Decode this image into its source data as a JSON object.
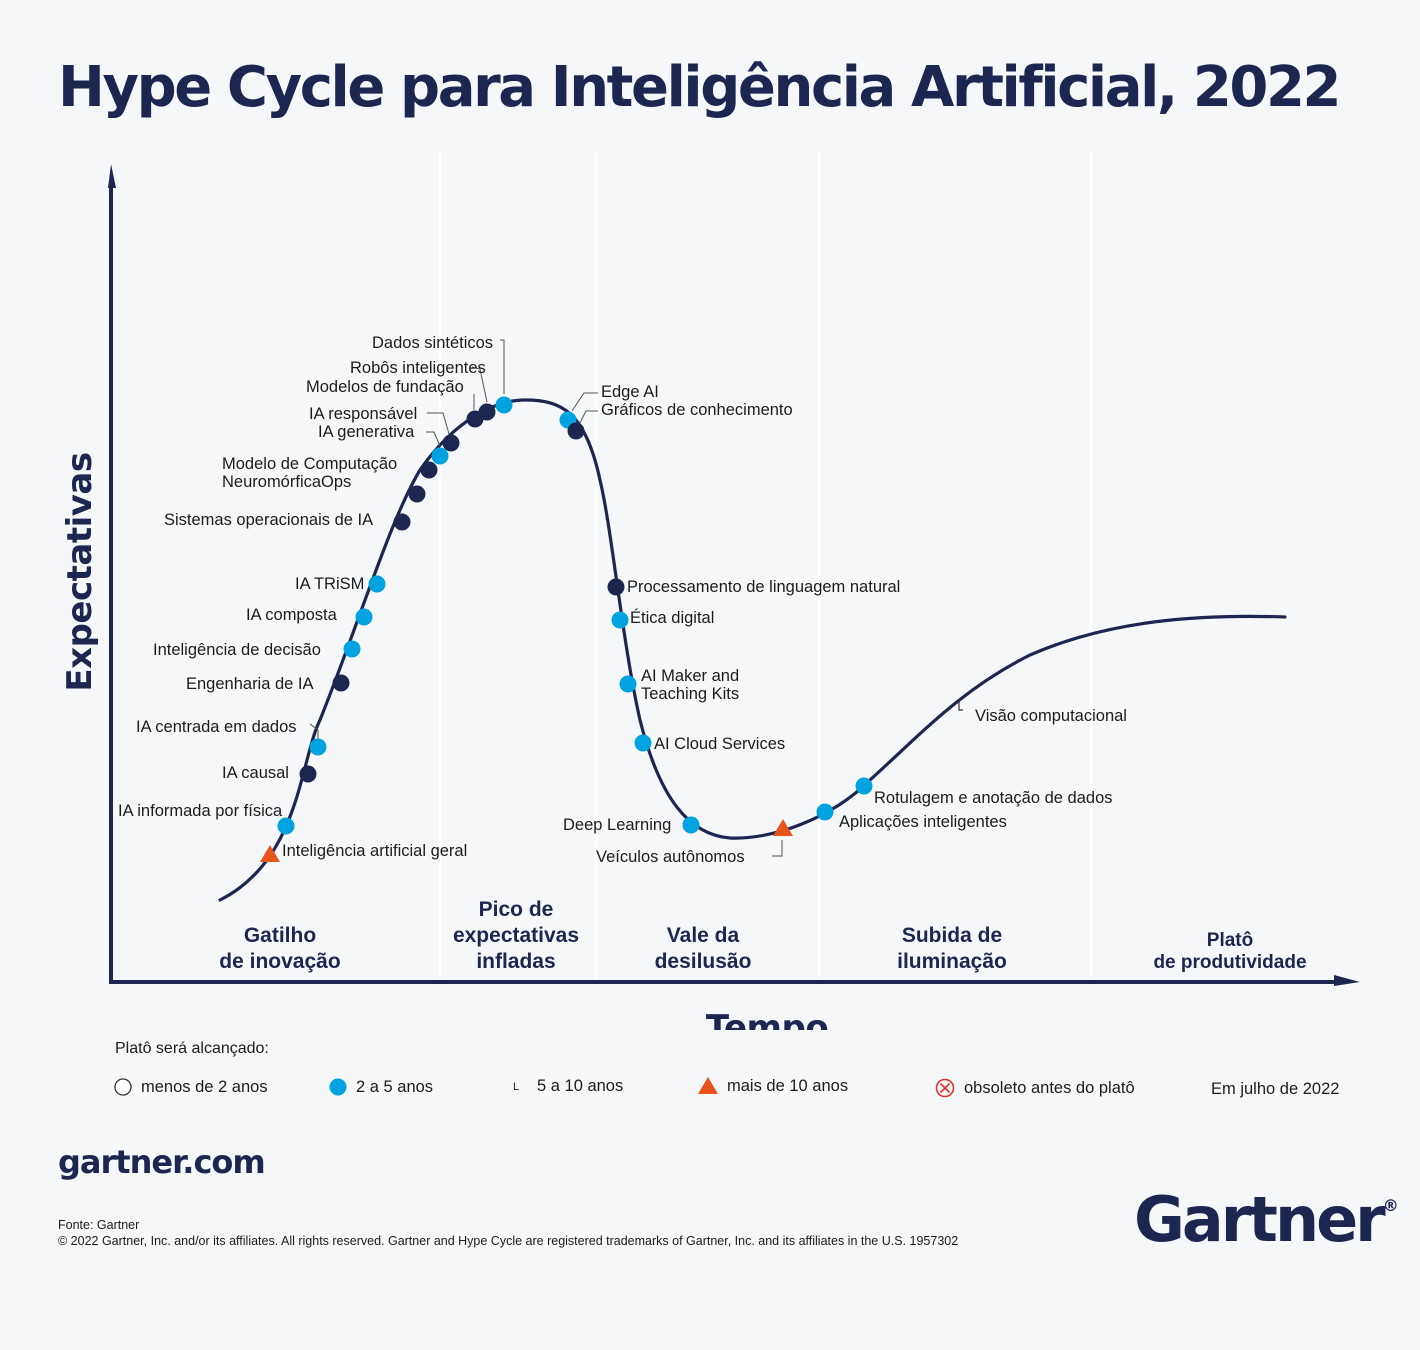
{
  "title": "Hype Cycle para Inteligência Artificial, 2022",
  "colors": {
    "navy": "#1c2651",
    "blue": "#00a3e0",
    "orange": "#e8551c",
    "red": "#e03030"
  },
  "chart_data": {
    "type": "hype-cycle",
    "xlabel": "Tempo",
    "ylabel": "Expectativas",
    "phases": [
      "Gatilho de inovação",
      "Pico de expectativas infladas",
      "Vale da desilusão",
      "Subida de iluminação",
      "Platô de produtividade"
    ],
    "categories": [
      {
        "key": "lt2",
        "name": "menos de 2 anos",
        "marker": "hollow-circle"
      },
      {
        "key": "2to5",
        "name": "2 a 5 anos",
        "marker": "blue-circle"
      },
      {
        "key": "5to10",
        "name": "5 a 10 anos",
        "marker": "navy-circle"
      },
      {
        "key": "gt10",
        "name": "mais de 10 anos",
        "marker": "orange-triangle"
      },
      {
        "key": "obs",
        "name": "obsoleto antes do platô",
        "marker": "crossed-circle"
      }
    ],
    "technologies": [
      {
        "name": "Inteligência artificial geral",
        "phase": "Gatilho de inovação",
        "category": "gt10"
      },
      {
        "name": "IA informada por física",
        "phase": "Gatilho de inovação",
        "category": "2to5"
      },
      {
        "name": "IA causal",
        "phase": "Gatilho de inovação",
        "category": "5to10"
      },
      {
        "name": "IA centrada em dados",
        "phase": "Gatilho de inovação",
        "category": "2to5"
      },
      {
        "name": "Engenharia de IA",
        "phase": "Gatilho de inovação",
        "category": "5to10"
      },
      {
        "name": "Inteligência de decisão",
        "phase": "Gatilho de inovação",
        "category": "2to5"
      },
      {
        "name": "IA composta",
        "phase": "Gatilho de inovação",
        "category": "2to5"
      },
      {
        "name": "IA TRiSM",
        "phase": "Gatilho de inovação",
        "category": "2to5"
      },
      {
        "name": "Sistemas operacionais de IA",
        "phase": "Gatilho de inovação",
        "category": "5to10"
      },
      {
        "name": "Modelo de Computação",
        "phase": "Gatilho de inovação",
        "category": "5to10"
      },
      {
        "name": "NeuromórficaOps",
        "phase": "Gatilho de inovação",
        "category": "5to10"
      },
      {
        "name": "IA generativa",
        "phase": "Gatilho de inovação",
        "category": "2to5"
      },
      {
        "name": "IA responsável",
        "phase": "Pico de expectativas infladas",
        "category": "5to10"
      },
      {
        "name": "Modelos de fundação",
        "phase": "Pico de expectativas infladas",
        "category": "5to10"
      },
      {
        "name": "Robôs inteligentes",
        "phase": "Pico de expectativas infladas",
        "category": "5to10"
      },
      {
        "name": "Dados sintéticos",
        "phase": "Pico de expectativas infladas",
        "category": "2to5"
      },
      {
        "name": "Edge AI",
        "phase": "Pico de expectativas infladas",
        "category": "2to5"
      },
      {
        "name": "Gráficos de conhecimento",
        "phase": "Pico de expectativas infladas",
        "category": "5to10"
      },
      {
        "name": "Processamento de linguagem natural",
        "phase": "Vale da desilusão",
        "category": "5to10"
      },
      {
        "name": "Ética digital",
        "phase": "Vale da desilusão",
        "category": "2to5"
      },
      {
        "name": "AI Maker and",
        "phase": "Vale da desilusão",
        "category": "2to5"
      },
      {
        "name": "Teaching Kits",
        "phase": "Vale da desilusão",
        "category": "2to5"
      },
      {
        "name": "AI Cloud Services",
        "phase": "Vale da desilusão",
        "category": "2to5"
      },
      {
        "name": "Deep Learning",
        "phase": "Vale da desilusão",
        "category": "2to5"
      },
      {
        "name": "Veículos autônomos",
        "phase": "Vale da desilusão",
        "category": "gt10"
      },
      {
        "name": "Aplicações inteligentes",
        "phase": "Subida de iluminação",
        "category": "2to5"
      },
      {
        "name": "Rotulagem e anotação de dados",
        "phase": "Subida de iluminação",
        "category": "2to5"
      },
      {
        "name": "Visão computacional",
        "phase": "Subida de iluminação",
        "category": "5to10"
      }
    ],
    "legend_title": "Platô será alcançado:",
    "as_of": "Em julho de 2022",
    "legend_5to10_symbol": "L",
    "grid": false,
    "legend_position": "bottom"
  },
  "footer": {
    "site": "gartner.com",
    "source": "Fonte: Gartner",
    "copyright": "© 2022 Gartner, Inc. and/or its affiliates. All rights reserved. Gartner and Hype Cycle are registered trademarks of Gartner, Inc. and its affiliates in the U.S. 1957302",
    "logo": "Gartner",
    "logo_mark": "®"
  }
}
